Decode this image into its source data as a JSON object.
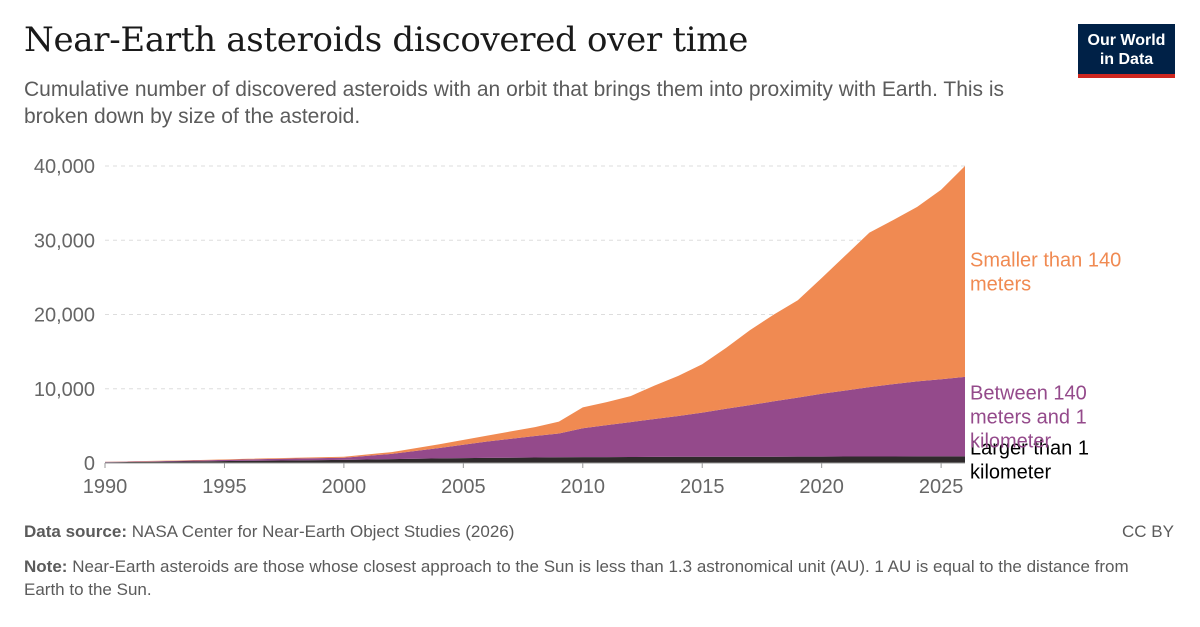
{
  "header": {
    "title": "Near-Earth asteroids discovered over time",
    "subtitle": "Cumulative number of discovered asteroids with an orbit that brings them into proximity with Earth. This is broken down by size of the asteroid.",
    "logo_line1": "Our World",
    "logo_line2": "in Data"
  },
  "footer": {
    "source_label": "Data source:",
    "source_text": "NASA Center for Near-Earth Object Studies (2026)",
    "license": "CC BY",
    "note_label": "Note:",
    "note_text": "Near-Earth asteroids are those whose closest approach to the Sun is less than 1.3 astronomical unit (AU). 1 AU is equal to the distance from Earth to the Sun."
  },
  "colors": {
    "small": "#f08a52",
    "medium": "#944a8b",
    "large": "#2f2a2c",
    "grid": "#dddddd",
    "axis_text": "#666666"
  },
  "chart_data": {
    "type": "area",
    "stacked": true,
    "x": [
      1990,
      1992,
      1994,
      1996,
      1998,
      2000,
      2002,
      2004,
      2006,
      2008,
      2009,
      2010,
      2011,
      2012,
      2013,
      2014,
      2015,
      2016,
      2017,
      2018,
      2019,
      2020,
      2021,
      2022,
      2023,
      2024,
      2025,
      2026
    ],
    "series": [
      {
        "name": "Larger than 1 kilometer",
        "label": "Larger than 1 kilometer",
        "color": "#2f2a2c",
        "values": [
          110,
          160,
          220,
          290,
          350,
          420,
          520,
          620,
          690,
          740,
          770,
          790,
          800,
          810,
          820,
          830,
          840,
          845,
          850,
          855,
          860,
          865,
          870,
          875,
          880,
          885,
          890,
          895
        ]
      },
      {
        "name": "Between 140 meters and 1 kilometer",
        "label": "Between 140 meters and 1 kilometer",
        "color": "#944a8b",
        "values": [
          40,
          80,
          130,
          190,
          260,
          300,
          700,
          1400,
          2200,
          2900,
          3200,
          3900,
          4300,
          4700,
          5100,
          5500,
          5950,
          6450,
          6950,
          7450,
          7950,
          8450,
          8900,
          9350,
          9750,
          10100,
          10400,
          10700
        ]
      },
      {
        "name": "Smaller than 140 meters",
        "label": "Smaller than 140 meters",
        "color": "#f08a52",
        "values": [
          20,
          40,
          60,
          80,
          100,
          130,
          250,
          500,
          800,
          1200,
          1600,
          2800,
          3100,
          3500,
          4500,
          5400,
          6500,
          8200,
          10100,
          11700,
          13100,
          15600,
          18200,
          20800,
          22100,
          23500,
          25500,
          28400
        ]
      }
    ],
    "y_ticks": [
      0,
      10000,
      20000,
      30000,
      40000
    ],
    "y_tick_labels": [
      "0",
      "10,000",
      "20,000",
      "30,000",
      "40,000"
    ],
    "x_ticks": [
      1990,
      1995,
      2000,
      2005,
      2010,
      2015,
      2020,
      2025
    ],
    "xlim": [
      1990,
      2026
    ],
    "ylim": [
      0,
      40000
    ],
    "grid": true,
    "legend": "right-inline"
  }
}
